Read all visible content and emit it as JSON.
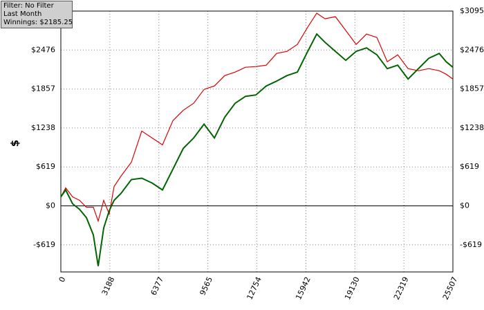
{
  "chart_data": {
    "type": "line",
    "info": [
      "Filter: No Filter",
      "Last Month",
      "Winnings: $2185.25"
    ],
    "ylabel": "$",
    "x": [
      0,
      315,
      765,
      1215,
      1665,
      2115,
      2430,
      2790,
      3150,
      3465,
      3915,
      4590,
      5265,
      5940,
      6615,
      7290,
      7965,
      8640,
      9315,
      9990,
      10665,
      11340,
      12015,
      12690,
      13365,
      14040,
      14715,
      15390,
      16065,
      16650,
      17190,
      17865,
      18540,
      19215,
      19890,
      20565,
      21240,
      21915,
      22590,
      23265,
      23940,
      24615,
      25065,
      25507
    ],
    "series": [
      {
        "color": "#dd0000",
        "values": [
          143,
          286,
          143,
          88,
          -22,
          -22,
          -242,
          88,
          -132,
          308,
          473,
          694,
          1189,
          1079,
          969,
          1354,
          1519,
          1630,
          1850,
          1905,
          2070,
          2125,
          2202,
          2213,
          2235,
          2422,
          2455,
          2565,
          2841,
          3061,
          2973,
          3006,
          2786,
          2565,
          2730,
          2675,
          2290,
          2400,
          2180,
          2147,
          2180,
          2147,
          2092,
          2015
        ]
      },
      {
        "color": "#006400",
        "values": [
          143,
          253,
          33,
          -55,
          -187,
          -462,
          -958,
          -352,
          -77,
          88,
          198,
          418,
          440,
          363,
          253,
          584,
          914,
          1079,
          1299,
          1079,
          1409,
          1630,
          1740,
          1762,
          1905,
          1982,
          2070,
          2125,
          2455,
          2730,
          2598,
          2455,
          2312,
          2455,
          2510,
          2400,
          2180,
          2235,
          2015,
          2180,
          2345,
          2422,
          2290,
          2202
        ]
      }
    ],
    "xlim": [
      0,
      25507
    ],
    "xticks": [
      0,
      3188,
      6377,
      9565,
      12754,
      15942,
      19130,
      22319,
      25507
    ],
    "ylim": [
      -1050,
      3095
    ],
    "yticks": [
      {
        "value": -619,
        "label": "-$619"
      },
      {
        "value": 0,
        "label": "$0"
      },
      {
        "value": 619,
        "label": "$619"
      },
      {
        "value": 1238,
        "label": "$1238"
      },
      {
        "value": 1857,
        "label": "$1857"
      },
      {
        "value": 2476,
        "label": "$2476"
      },
      {
        "value": 3095,
        "label": "$3095"
      }
    ],
    "grid": true
  }
}
